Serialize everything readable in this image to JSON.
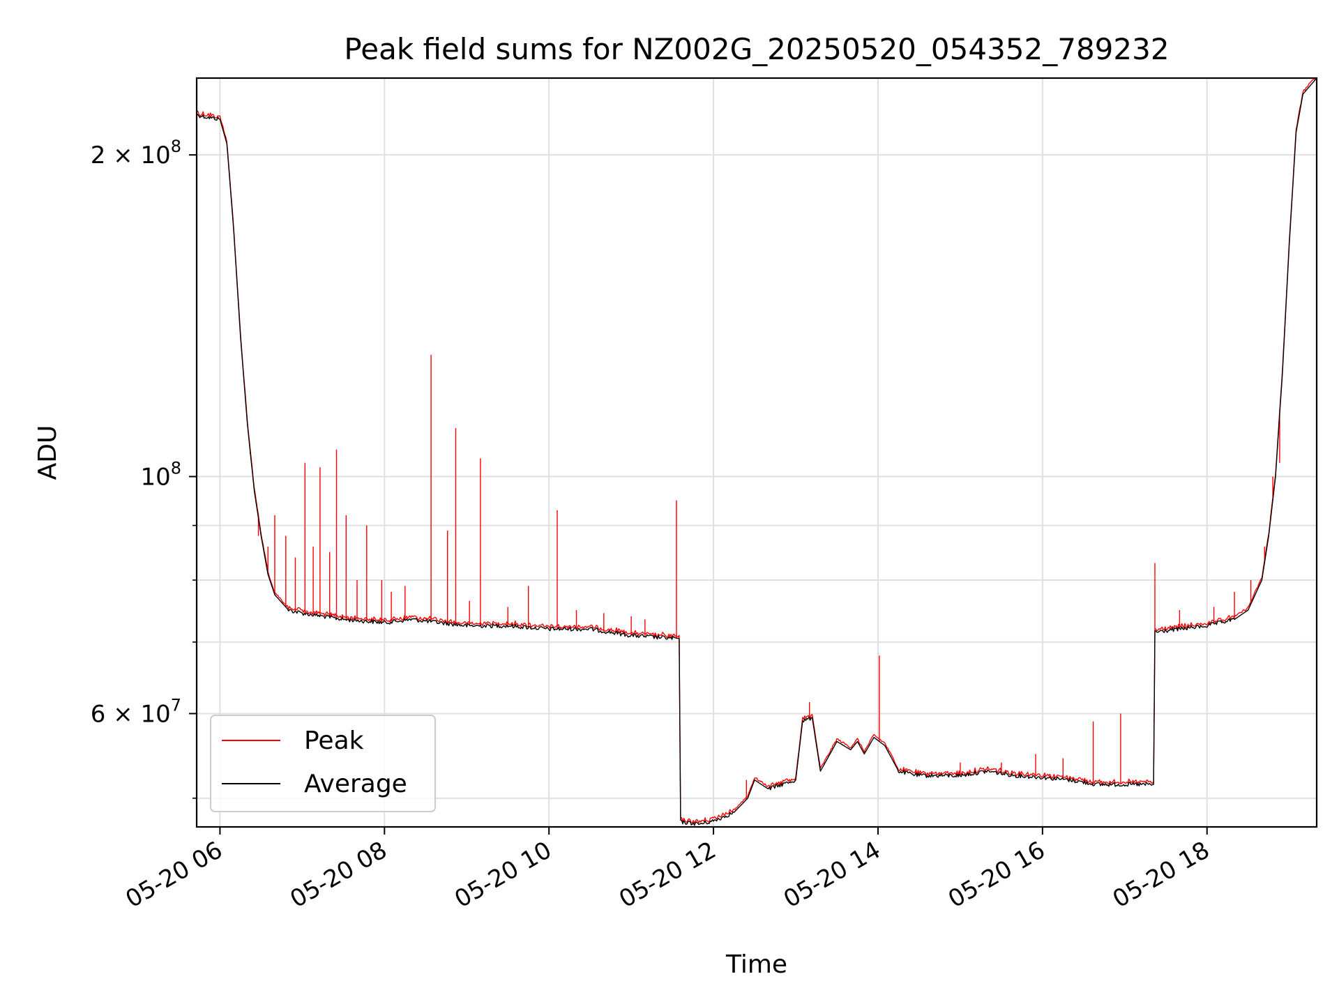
{
  "chart_data": {
    "type": "line",
    "title": "Peak field sums for NZ002G_20250520_054352_789232",
    "xlabel": "Time",
    "ylabel": "ADU",
    "xlim": [
      "2025-05-20 05:43",
      "2025-05-20 19:20"
    ],
    "ylim": [
      47000000,
      236000000
    ],
    "yscale": "log",
    "grid": true,
    "legend_position": "lower-left",
    "x_ticks": [
      {
        "t": "2025-05-20 06:00",
        "label": "05-20 06"
      },
      {
        "t": "2025-05-20 08:00",
        "label": "05-20 08"
      },
      {
        "t": "2025-05-20 10:00",
        "label": "05-20 10"
      },
      {
        "t": "2025-05-20 12:00",
        "label": "05-20 12"
      },
      {
        "t": "2025-05-20 14:00",
        "label": "05-20 14"
      },
      {
        "t": "2025-05-20 16:00",
        "label": "05-20 16"
      },
      {
        "t": "2025-05-20 18:00",
        "label": "05-20 18"
      }
    ],
    "y_major_ticks": [
      {
        "value": 200000000,
        "mantissa": "2",
        "exp": "8"
      },
      {
        "value": 100000000,
        "mantissa": "",
        "exp": "8"
      },
      {
        "value": 60000000,
        "mantissa": "6",
        "exp": "7"
      }
    ],
    "y_minor_ticks": [
      50000000,
      70000000,
      80000000,
      90000000
    ],
    "series": [
      {
        "name": "Average",
        "color": "#000000",
        "points": [
          [
            "2025-05-20 05:43",
            218000000
          ],
          [
            "2025-05-20 05:50",
            217000000
          ],
          [
            "2025-05-20 06:00",
            216000000
          ],
          [
            "2025-05-20 06:05",
            205000000
          ],
          [
            "2025-05-20 06:10",
            170000000
          ],
          [
            "2025-05-20 06:15",
            135000000
          ],
          [
            "2025-05-20 06:20",
            112000000
          ],
          [
            "2025-05-20 06:25",
            97000000
          ],
          [
            "2025-05-20 06:30",
            88000000
          ],
          [
            "2025-05-20 06:35",
            81000000
          ],
          [
            "2025-05-20 06:40",
            77500000
          ],
          [
            "2025-05-20 06:50",
            75000000
          ],
          [
            "2025-05-20 07:00",
            74500000
          ],
          [
            "2025-05-20 07:15",
            74000000
          ],
          [
            "2025-05-20 07:30",
            73500000
          ],
          [
            "2025-05-20 08:00",
            73000000
          ],
          [
            "2025-05-20 08:20",
            73500000
          ],
          [
            "2025-05-20 08:40",
            73000000
          ],
          [
            "2025-05-20 09:00",
            72500000
          ],
          [
            "2025-05-20 09:30",
            72500000
          ],
          [
            "2025-05-20 10:00",
            72000000
          ],
          [
            "2025-05-20 10:30",
            72000000
          ],
          [
            "2025-05-20 11:00",
            71000000
          ],
          [
            "2025-05-20 11:35",
            70500000
          ],
          [
            "2025-05-20 11:36",
            47500000
          ],
          [
            "2025-05-20 11:50",
            47300000
          ],
          [
            "2025-05-20 12:00",
            47600000
          ],
          [
            "2025-05-20 12:15",
            48500000
          ],
          [
            "2025-05-20 12:25",
            50000000
          ],
          [
            "2025-05-20 12:30",
            52000000
          ],
          [
            "2025-05-20 12:40",
            51000000
          ],
          [
            "2025-05-20 12:50",
            51500000
          ],
          [
            "2025-05-20 13:00",
            52000000
          ],
          [
            "2025-05-20 13:05",
            59000000
          ],
          [
            "2025-05-20 13:12",
            59500000
          ],
          [
            "2025-05-20 13:18",
            53000000
          ],
          [
            "2025-05-20 13:25",
            55000000
          ],
          [
            "2025-05-20 13:30",
            56500000
          ],
          [
            "2025-05-20 13:40",
            55500000
          ],
          [
            "2025-05-20 13:45",
            56500000
          ],
          [
            "2025-05-20 13:50",
            55000000
          ],
          [
            "2025-05-20 13:57",
            57000000
          ],
          [
            "2025-05-20 14:05",
            56000000
          ],
          [
            "2025-05-20 14:15",
            53000000
          ],
          [
            "2025-05-20 14:30",
            52500000
          ],
          [
            "2025-05-20 15:00",
            52500000
          ],
          [
            "2025-05-20 15:20",
            53000000
          ],
          [
            "2025-05-20 15:40",
            52500000
          ],
          [
            "2025-05-20 16:00",
            52300000
          ],
          [
            "2025-05-20 16:20",
            52000000
          ],
          [
            "2025-05-20 16:40",
            51500000
          ],
          [
            "2025-05-20 17:00",
            51500000
          ],
          [
            "2025-05-20 17:21",
            51500000
          ],
          [
            "2025-05-20 17:22",
            71500000
          ],
          [
            "2025-05-20 17:40",
            72000000
          ],
          [
            "2025-05-20 18:00",
            72500000
          ],
          [
            "2025-05-20 18:20",
            73500000
          ],
          [
            "2025-05-20 18:30",
            75000000
          ],
          [
            "2025-05-20 18:40",
            80000000
          ],
          [
            "2025-05-20 18:45",
            88000000
          ],
          [
            "2025-05-20 18:50",
            100000000
          ],
          [
            "2025-05-20 18:55",
            125000000
          ],
          [
            "2025-05-20 19:00",
            165000000
          ],
          [
            "2025-05-20 19:05",
            210000000
          ],
          [
            "2025-05-20 19:10",
            228000000
          ],
          [
            "2025-05-20 19:20",
            236000000
          ]
        ]
      },
      {
        "name": "Peak",
        "color": "#ff0000",
        "spikes": [
          [
            "2025-05-20 06:22",
            105000000
          ],
          [
            "2025-05-20 06:28",
            88000000
          ],
          [
            "2025-05-20 06:35",
            86000000
          ],
          [
            "2025-05-20 06:40",
            92000000
          ],
          [
            "2025-05-20 06:48",
            88000000
          ],
          [
            "2025-05-20 06:55",
            84000000
          ],
          [
            "2025-05-20 07:02",
            103000000
          ],
          [
            "2025-05-20 07:08",
            86000000
          ],
          [
            "2025-05-20 07:13",
            102000000
          ],
          [
            "2025-05-20 07:20",
            85000000
          ],
          [
            "2025-05-20 07:25",
            106000000
          ],
          [
            "2025-05-20 07:32",
            92000000
          ],
          [
            "2025-05-20 07:40",
            80000000
          ],
          [
            "2025-05-20 07:47",
            90000000
          ],
          [
            "2025-05-20 07:58",
            80000000
          ],
          [
            "2025-05-20 08:05",
            78000000
          ],
          [
            "2025-05-20 08:15",
            79000000
          ],
          [
            "2025-05-20 08:34",
            130000000
          ],
          [
            "2025-05-20 08:46",
            89000000
          ],
          [
            "2025-05-20 08:52",
            111000000
          ],
          [
            "2025-05-20 09:02",
            76500000
          ],
          [
            "2025-05-20 09:10",
            104000000
          ],
          [
            "2025-05-20 09:30",
            75500000
          ],
          [
            "2025-05-20 09:45",
            79000000
          ],
          [
            "2025-05-20 10:06",
            93000000
          ],
          [
            "2025-05-20 10:20",
            75000000
          ],
          [
            "2025-05-20 10:40",
            74500000
          ],
          [
            "2025-05-20 11:00",
            74000000
          ],
          [
            "2025-05-20 11:10",
            73500000
          ],
          [
            "2025-05-20 11:33",
            95000000
          ],
          [
            "2025-05-20 12:24",
            52000000
          ],
          [
            "2025-05-20 13:10",
            61500000
          ],
          [
            "2025-05-20 14:01",
            68000000
          ],
          [
            "2025-05-20 15:00",
            54000000
          ],
          [
            "2025-05-20 15:30",
            54000000
          ],
          [
            "2025-05-20 15:55",
            55000000
          ],
          [
            "2025-05-20 16:15",
            54500000
          ],
          [
            "2025-05-20 16:37",
            59000000
          ],
          [
            "2025-05-20 16:57",
            60000000
          ],
          [
            "2025-05-20 17:22",
            83000000
          ],
          [
            "2025-05-20 17:40",
            75000000
          ],
          [
            "2025-05-20 18:05",
            75500000
          ],
          [
            "2025-05-20 18:20",
            78000000
          ],
          [
            "2025-05-20 18:32",
            80000000
          ],
          [
            "2025-05-20 18:42",
            86000000
          ],
          [
            "2025-05-20 18:48",
            100000000
          ],
          [
            "2025-05-20 18:53",
            103000000
          ]
        ]
      }
    ]
  }
}
